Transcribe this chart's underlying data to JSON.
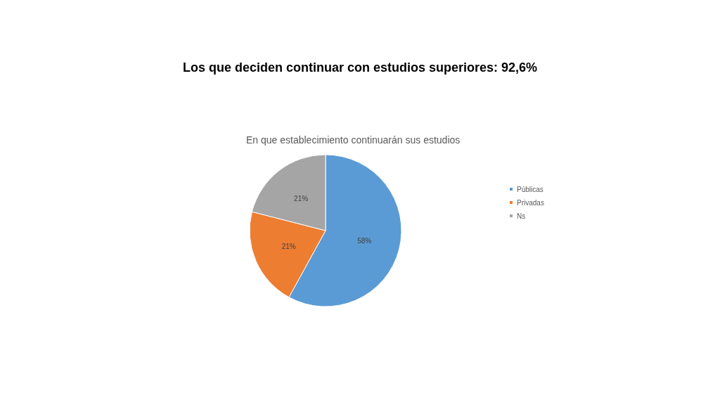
{
  "chart_data": {
    "type": "pie",
    "title": "Los que deciden continuar con estudios superiores: 92,6%",
    "subtitle": "En que establecimiento continuarán sus estudios",
    "categories": [
      "Públicas",
      "Privadas",
      "Ns"
    ],
    "values": [
      58,
      21,
      21
    ],
    "colors": [
      "#5b9bd5",
      "#ed7d31",
      "#a5a5a5"
    ],
    "value_labels": [
      "58%",
      "21%",
      "21%"
    ],
    "legend": "right"
  }
}
